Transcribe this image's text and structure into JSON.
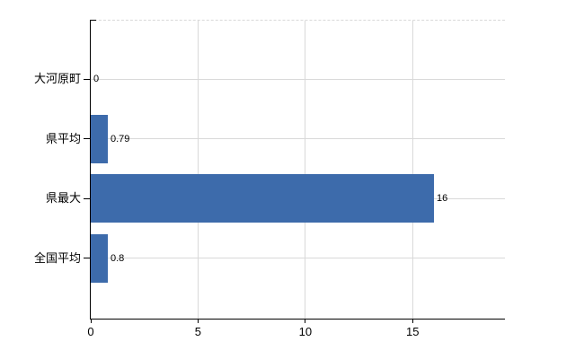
{
  "chart_data": {
    "type": "bar",
    "orientation": "horizontal",
    "title": "",
    "xlabel": "",
    "ylabel": "",
    "categories": [
      "大河原町",
      "県平均",
      "県最大",
      "全国平均"
    ],
    "values": [
      0,
      0.79,
      16,
      0.8
    ],
    "value_labels": [
      "0",
      "0.79",
      "16",
      "0.8"
    ],
    "x_ticks": [
      0,
      5,
      10,
      15
    ],
    "x_tick_labels": [
      "0",
      "5",
      "10",
      "15"
    ],
    "xlim": [
      0,
      19.3
    ],
    "grid": true,
    "legend": "none",
    "colors": {
      "bar": "#3d6bab",
      "grid": "#d9d9d9",
      "axis": "#000000",
      "text": "#000000",
      "background": "#ffffff"
    }
  }
}
